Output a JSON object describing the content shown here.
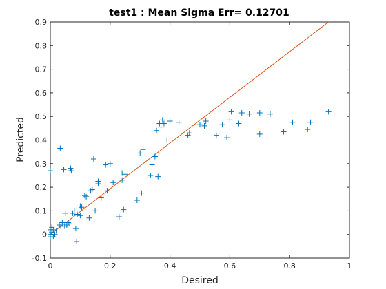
{
  "chart_data": {
    "type": "scatter",
    "title": "test1 :  Mean Sigma Err= 0.12701",
    "xlabel": "Desired",
    "ylabel": "Predicted",
    "xlim": [
      0,
      1
    ],
    "ylim": [
      -0.1,
      0.9
    ],
    "xticks": [
      "0",
      "0.2",
      "0.4",
      "0.6",
      "0.8",
      "1"
    ],
    "yticks": [
      "-0.1",
      "0",
      "0.1",
      "0.2",
      "0.3",
      "0.4",
      "0.5",
      "0.6",
      "0.7",
      "0.8",
      "0.9"
    ],
    "grid": false,
    "marker": "+",
    "colors": {
      "points": "#0072BD",
      "reference_line": "#D95319",
      "axes": "#262626"
    },
    "reference_line": {
      "x": [
        0,
        0.93
      ],
      "y": [
        0,
        0.9
      ]
    },
    "points": [
      {
        "x": 0.0,
        "y": 0.27
      },
      {
        "x": 0.0,
        "y": 0.02
      },
      {
        "x": 0.0,
        "y": 0.0
      },
      {
        "x": 0.0,
        "y": -0.01
      },
      {
        "x": 0.005,
        "y": 0.03
      },
      {
        "x": 0.005,
        "y": 0.01
      },
      {
        "x": 0.01,
        "y": 0.02
      },
      {
        "x": 0.01,
        "y": -0.01
      },
      {
        "x": 0.015,
        "y": 0.0
      },
      {
        "x": 0.02,
        "y": 0.015
      },
      {
        "x": 0.03,
        "y": 0.04
      },
      {
        "x": 0.033,
        "y": 0.365
      },
      {
        "x": 0.035,
        "y": 0.035
      },
      {
        "x": 0.04,
        "y": 0.05
      },
      {
        "x": 0.045,
        "y": 0.275
      },
      {
        "x": 0.048,
        "y": 0.035
      },
      {
        "x": 0.05,
        "y": 0.09
      },
      {
        "x": 0.055,
        "y": 0.04
      },
      {
        "x": 0.06,
        "y": 0.05
      },
      {
        "x": 0.065,
        "y": 0.045
      },
      {
        "x": 0.068,
        "y": 0.28
      },
      {
        "x": 0.07,
        "y": 0.27
      },
      {
        "x": 0.075,
        "y": 0.09
      },
      {
        "x": 0.08,
        "y": 0.1
      },
      {
        "x": 0.085,
        "y": 0.025
      },
      {
        "x": 0.088,
        "y": -0.03
      },
      {
        "x": 0.09,
        "y": 0.085
      },
      {
        "x": 0.1,
        "y": 0.08
      },
      {
        "x": 0.1,
        "y": 0.12
      },
      {
        "x": 0.105,
        "y": 0.115
      },
      {
        "x": 0.115,
        "y": 0.165
      },
      {
        "x": 0.12,
        "y": 0.16
      },
      {
        "x": 0.13,
        "y": 0.07
      },
      {
        "x": 0.135,
        "y": 0.185
      },
      {
        "x": 0.14,
        "y": 0.19
      },
      {
        "x": 0.145,
        "y": 0.32
      },
      {
        "x": 0.15,
        "y": 0.1
      },
      {
        "x": 0.16,
        "y": 0.215
      },
      {
        "x": 0.16,
        "y": 0.225
      },
      {
        "x": 0.17,
        "y": 0.155
      },
      {
        "x": 0.185,
        "y": 0.295
      },
      {
        "x": 0.19,
        "y": 0.185
      },
      {
        "x": 0.2,
        "y": 0.3
      },
      {
        "x": 0.21,
        "y": 0.22
      },
      {
        "x": 0.23,
        "y": 0.075
      },
      {
        "x": 0.24,
        "y": 0.23
      },
      {
        "x": 0.24,
        "y": 0.26
      },
      {
        "x": 0.245,
        "y": 0.105
      },
      {
        "x": 0.25,
        "y": 0.255
      },
      {
        "x": 0.29,
        "y": 0.145
      },
      {
        "x": 0.3,
        "y": 0.345
      },
      {
        "x": 0.305,
        "y": 0.175
      },
      {
        "x": 0.31,
        "y": 0.36
      },
      {
        "x": 0.335,
        "y": 0.25
      },
      {
        "x": 0.34,
        "y": 0.295
      },
      {
        "x": 0.35,
        "y": 0.33
      },
      {
        "x": 0.355,
        "y": 0.44
      },
      {
        "x": 0.36,
        "y": 0.245
      },
      {
        "x": 0.365,
        "y": 0.47
      },
      {
        "x": 0.37,
        "y": 0.455
      },
      {
        "x": 0.375,
        "y": 0.485
      },
      {
        "x": 0.38,
        "y": 0.47
      },
      {
        "x": 0.39,
        "y": 0.4
      },
      {
        "x": 0.4,
        "y": 0.48
      },
      {
        "x": 0.43,
        "y": 0.475
      },
      {
        "x": 0.46,
        "y": 0.42
      },
      {
        "x": 0.465,
        "y": 0.43
      },
      {
        "x": 0.5,
        "y": 0.465
      },
      {
        "x": 0.515,
        "y": 0.46
      },
      {
        "x": 0.52,
        "y": 0.48
      },
      {
        "x": 0.555,
        "y": 0.42
      },
      {
        "x": 0.575,
        "y": 0.465
      },
      {
        "x": 0.59,
        "y": 0.41
      },
      {
        "x": 0.6,
        "y": 0.485
      },
      {
        "x": 0.605,
        "y": 0.52
      },
      {
        "x": 0.63,
        "y": 0.47
      },
      {
        "x": 0.64,
        "y": 0.515
      },
      {
        "x": 0.665,
        "y": 0.51
      },
      {
        "x": 0.7,
        "y": 0.515
      },
      {
        "x": 0.7,
        "y": 0.425
      },
      {
        "x": 0.735,
        "y": 0.51
      },
      {
        "x": 0.78,
        "y": 0.435
      },
      {
        "x": 0.81,
        "y": 0.475
      },
      {
        "x": 0.86,
        "y": 0.445
      },
      {
        "x": 0.87,
        "y": 0.475
      },
      {
        "x": 0.93,
        "y": 0.52
      }
    ]
  }
}
